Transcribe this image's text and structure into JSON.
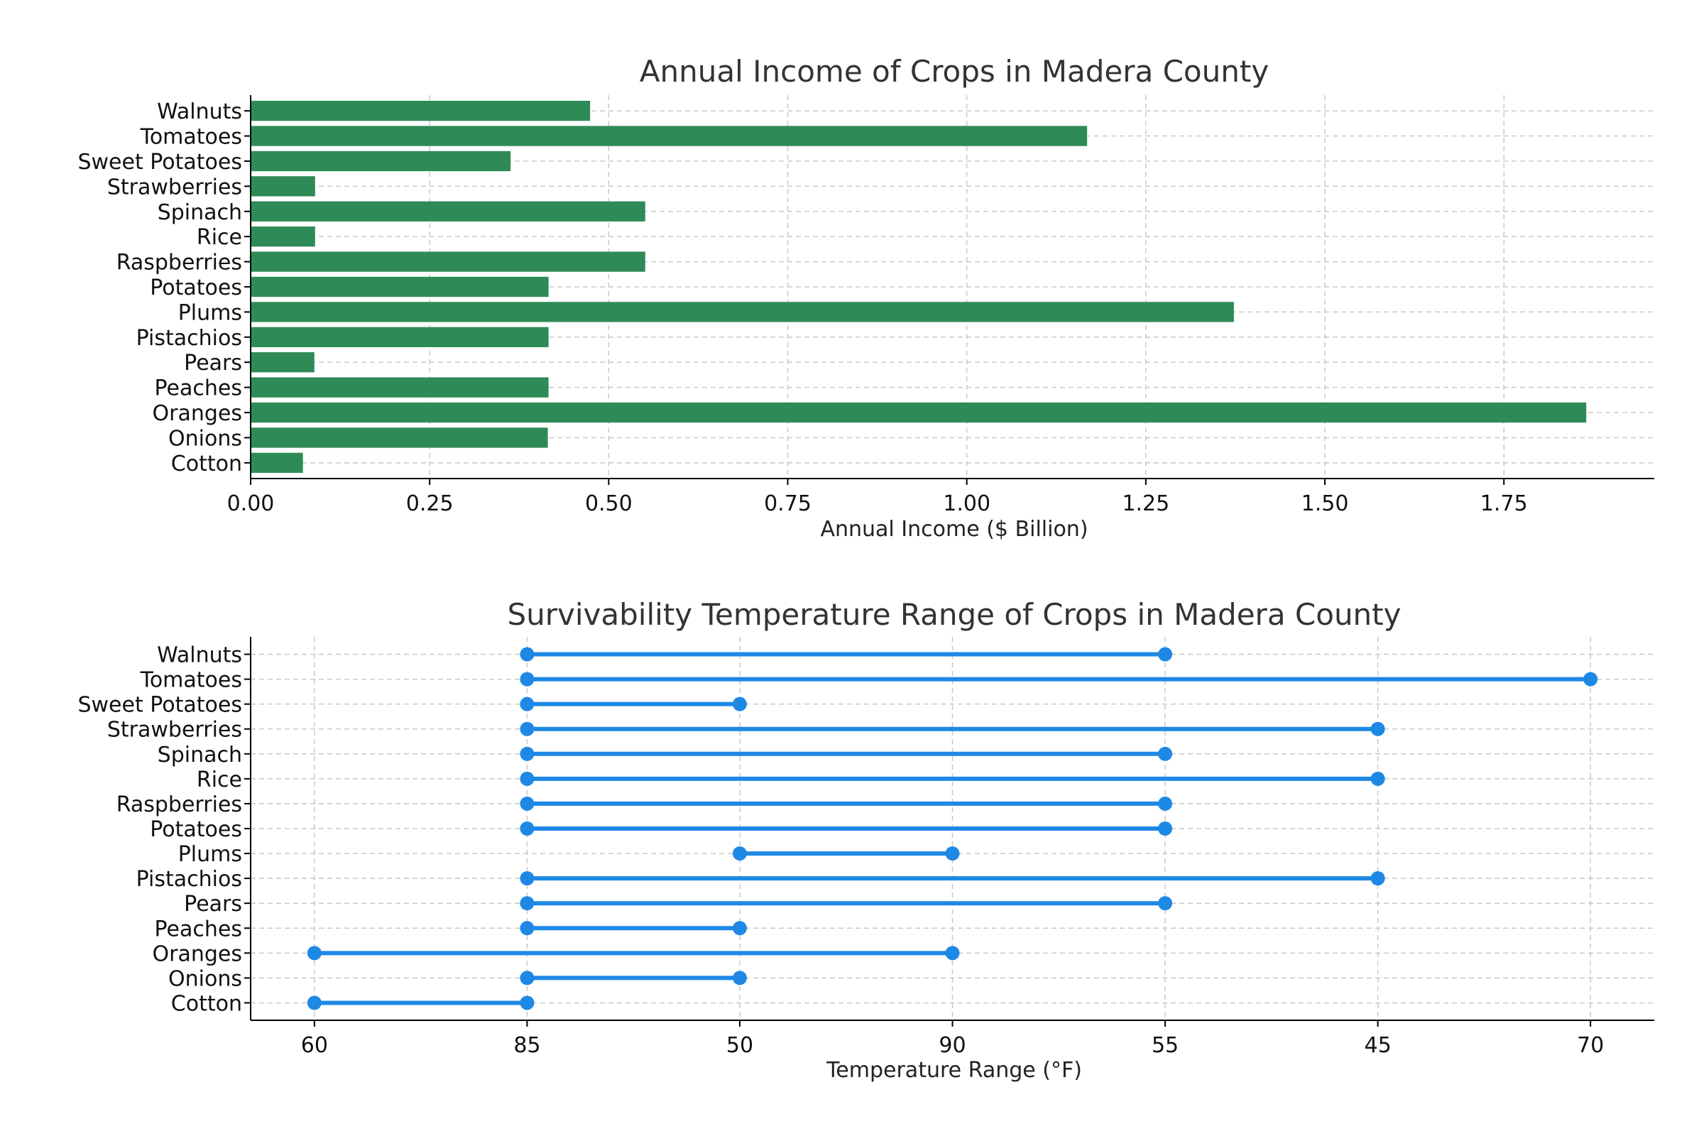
{
  "chart_data": [
    {
      "type": "bar",
      "orientation": "horizontal",
      "title": "Annual Income of Crops in Madera County",
      "xlabel": "Annual Income ($ Billion)",
      "ylabel": "",
      "xlim": [
        0,
        1.96
      ],
      "xticks": [
        "0.00",
        "0.25",
        "0.50",
        "0.75",
        "1.00",
        "1.25",
        "1.50",
        "1.75"
      ],
      "grid": true,
      "color": "#2e8b57",
      "categories": [
        "Cotton",
        "Onions",
        "Oranges",
        "Peaches",
        "Pears",
        "Pistachios",
        "Plums",
        "Potatoes",
        "Raspberries",
        "Rice",
        "Spinach",
        "Strawberries",
        "Sweet Potatoes",
        "Tomatoes",
        "Walnuts"
      ],
      "values": [
        0.073,
        0.415,
        1.865,
        0.416,
        0.089,
        0.416,
        1.373,
        0.416,
        0.551,
        0.09,
        0.551,
        0.09,
        0.363,
        1.168,
        0.474
      ]
    },
    {
      "type": "dumbbell",
      "title": "Survivability Temperature Range of Crops in Madera County",
      "xlabel": "Temperature Range (°F)",
      "ylabel": "",
      "grid": true,
      "color": "#1e88e5",
      "x_categories": [
        "60",
        "85",
        "50",
        "90",
        "55",
        "45",
        "70"
      ],
      "categories": [
        "Cotton",
        "Onions",
        "Oranges",
        "Peaches",
        "Pears",
        "Pistachios",
        "Plums",
        "Potatoes",
        "Raspberries",
        "Rice",
        "Spinach",
        "Strawberries",
        "Sweet Potatoes",
        "Tomatoes",
        "Walnuts"
      ],
      "ranges": [
        [
          "60",
          "85"
        ],
        [
          "85",
          "50"
        ],
        [
          "60",
          "90"
        ],
        [
          "85",
          "50"
        ],
        [
          "85",
          "55"
        ],
        [
          "85",
          "45"
        ],
        [
          "50",
          "90"
        ],
        [
          "85",
          "55"
        ],
        [
          "85",
          "55"
        ],
        [
          "85",
          "45"
        ],
        [
          "85",
          "55"
        ],
        [
          "85",
          "45"
        ],
        [
          "85",
          "50"
        ],
        [
          "85",
          "70"
        ],
        [
          "85",
          "55"
        ]
      ]
    }
  ]
}
